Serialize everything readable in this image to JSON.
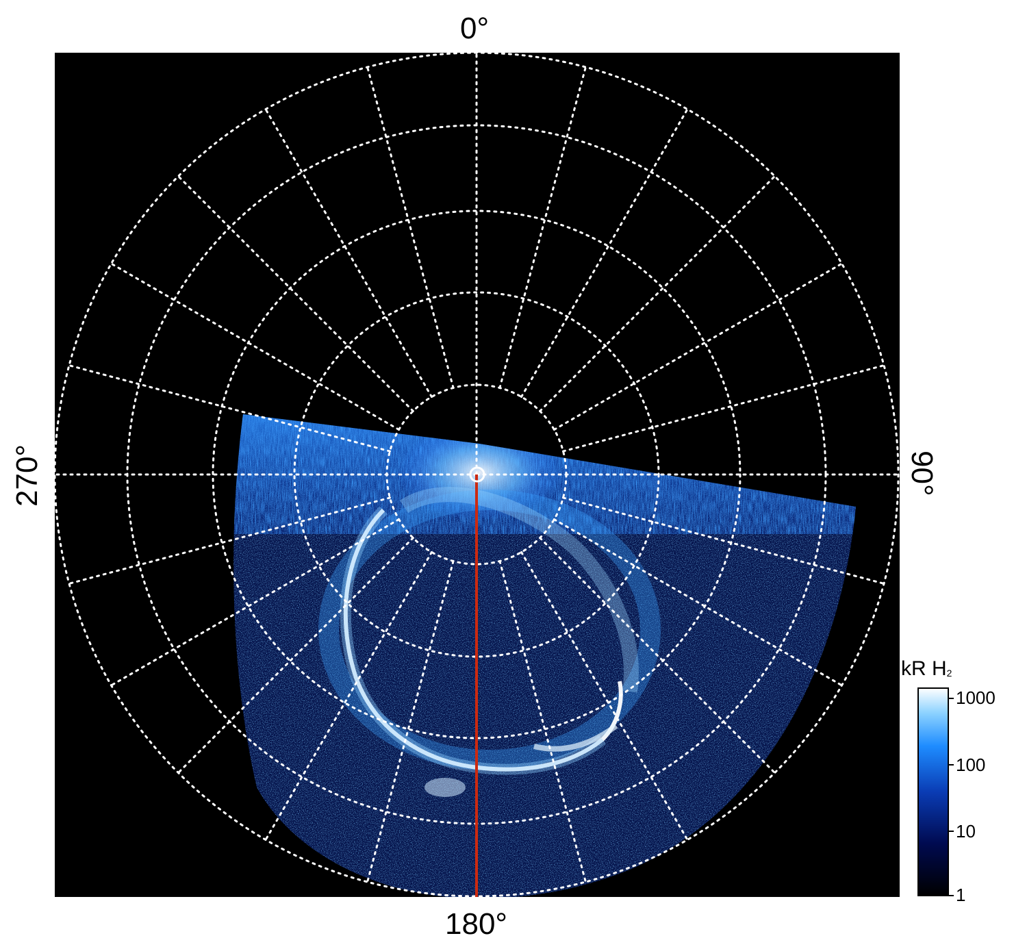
{
  "axis_labels": {
    "top": "0°",
    "right": "90°",
    "bottom": "180°",
    "left": "270°"
  },
  "colorbar": {
    "title": "kR H",
    "title_subscript": "2",
    "ticks": [
      "1000",
      "100",
      "10",
      "1"
    ],
    "scale": "log",
    "range": [
      1,
      1500
    ],
    "colors": [
      "#000000",
      "#000a50",
      "#0a3cb4",
      "#1e8cff",
      "#8cd2ff",
      "#ffffff"
    ]
  },
  "colors": {
    "background": "#000000",
    "grid": "#ffffff",
    "meridian_line": "#cc2a10",
    "aurora": "#1e8cff"
  }
}
